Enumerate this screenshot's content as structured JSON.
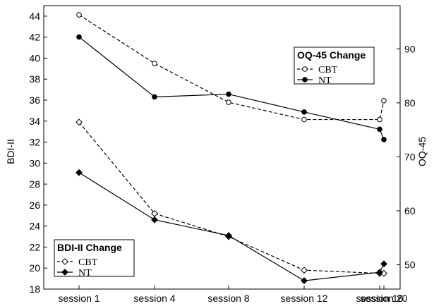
{
  "chart_data": {
    "type": "line",
    "categories": [
      "session 1",
      "session 4",
      "session 8",
      "session 12",
      "session 16",
      "session 20"
    ],
    "left_axis": {
      "label": "BDI-II",
      "range": [
        18,
        45
      ],
      "ticks": [
        18,
        20,
        22,
        24,
        26,
        28,
        30,
        32,
        34,
        36,
        38,
        40,
        42,
        44
      ]
    },
    "right_axis": {
      "label": "OQ-45",
      "range": [
        45.5,
        98
      ],
      "ticks": [
        50,
        60,
        70,
        80,
        90
      ]
    },
    "legends": [
      {
        "title": "OQ-45 Change",
        "position": "top-right"
      },
      {
        "title": "BDI-II Change",
        "position": "bottom-left"
      }
    ],
    "series": [
      {
        "name": "CBT",
        "group": "OQ-45 Change",
        "axis": "right",
        "style": "dashed",
        "marker": "open-circle",
        "values": [
          96.3,
          87.3,
          80.1,
          76.9,
          76.9,
          80.4
        ]
      },
      {
        "name": "NT",
        "group": "OQ-45 Change",
        "axis": "right",
        "style": "solid",
        "marker": "filled-circle",
        "values": [
          92.2,
          81.1,
          81.6,
          78.3,
          75.1,
          73.2
        ]
      },
      {
        "name": "CBT",
        "group": "BDI-II Change",
        "axis": "left",
        "style": "dashed",
        "marker": "open-diamond",
        "values": [
          33.9,
          25.2,
          23.0,
          19.8,
          19.5,
          19.5
        ]
      },
      {
        "name": "NT",
        "group": "BDI-II Change",
        "axis": "left",
        "style": "solid",
        "marker": "filled-diamond",
        "values": [
          29.1,
          24.6,
          23.1,
          18.8,
          19.6,
          20.4
        ]
      }
    ],
    "grid": false
  }
}
